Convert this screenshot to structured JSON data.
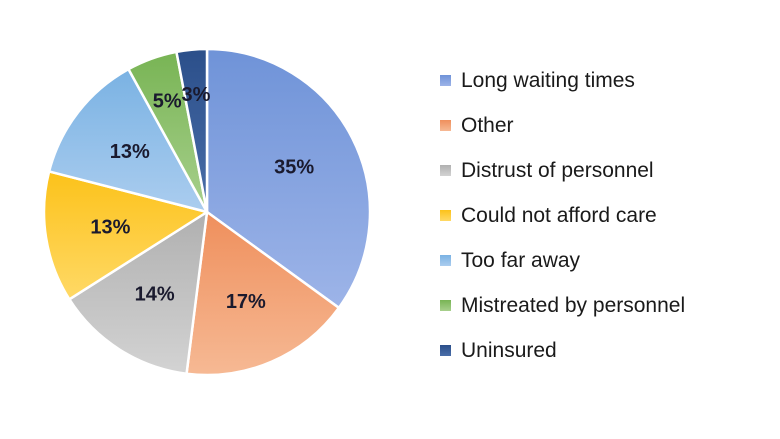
{
  "chart_data": {
    "type": "pie",
    "title": "",
    "legend_position": "right",
    "slices": [
      {
        "label": "Long waiting times",
        "value": 35,
        "value_label": "35%",
        "color": "#6f93d8",
        "color_light": "#9db4e8"
      },
      {
        "label": "Other",
        "value": 17,
        "value_label": "17%",
        "color": "#ef8f5c",
        "color_light": "#f6b994"
      },
      {
        "label": "Distrust of personnel",
        "value": 14,
        "value_label": "14%",
        "color": "#b0b0b0",
        "color_light": "#d3d3d3"
      },
      {
        "label": "Could not afford care",
        "value": 13,
        "value_label": "13%",
        "color": "#fcc21a",
        "color_light": "#ffd966"
      },
      {
        "label": "Too far away",
        "value": 13,
        "value_label": "13%",
        "color": "#7ab2e3",
        "color_light": "#abcdef"
      },
      {
        "label": "Mistreated by personnel",
        "value": 5,
        "value_label": "5%",
        "color": "#78b454",
        "color_light": "#a8d08d"
      },
      {
        "label": "Uninsured",
        "value": 3,
        "value_label": "3%",
        "color": "#2b4f8a",
        "color_light": "#4a6ea9"
      }
    ]
  }
}
